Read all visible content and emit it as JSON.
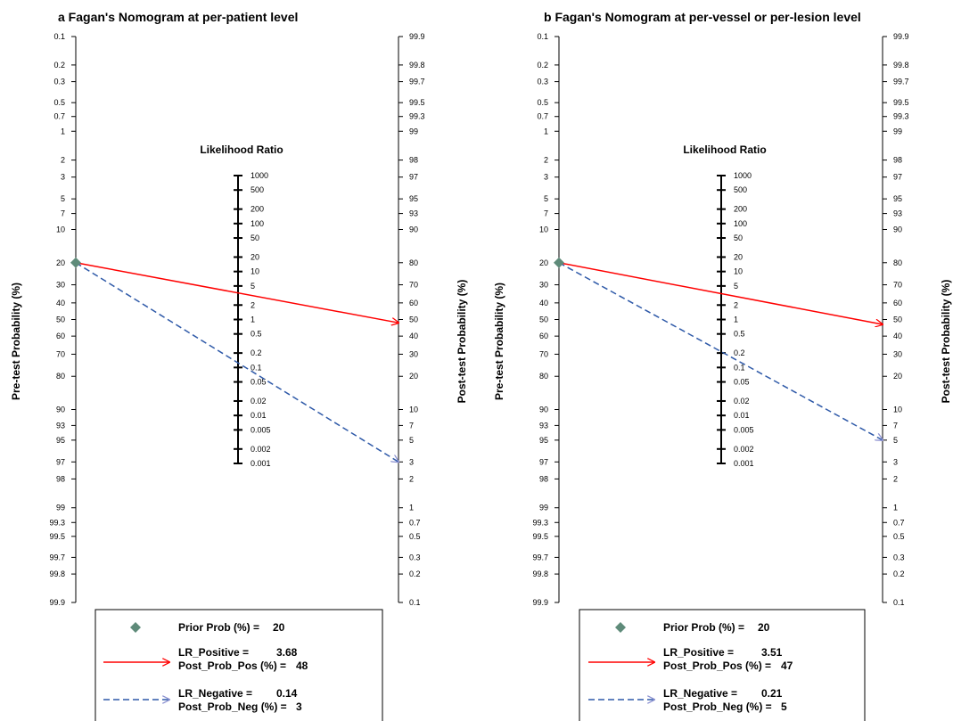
{
  "chart_data": [
    {
      "type": "nomogram",
      "title": "a  Fagan's Nomogram at per-patient level",
      "ylabel_left": "Pre-test Probability (%)",
      "ylabel_right": "Post-test Probability (%)",
      "lr_axis_title": "Likelihood Ratio",
      "pre_ticks": [
        "0.1",
        "0.2",
        "0.3",
        "0.5",
        "0.7",
        "1",
        "2",
        "3",
        "5",
        "7",
        "10",
        "20",
        "30",
        "40",
        "50",
        "60",
        "70",
        "80",
        "90",
        "93",
        "95",
        "97",
        "98",
        "99",
        "99.3",
        "99.5",
        "99.7",
        "99.8",
        "99.9"
      ],
      "lr_ticks": [
        "1000",
        "500",
        "200",
        "100",
        "50",
        "20",
        "10",
        "5",
        "2",
        "1",
        "0.5",
        "0.2",
        "0.1",
        "0.05",
        "0.02",
        "0.01",
        "0.005",
        "0.002",
        "0.001"
      ],
      "post_ticks": [
        "99.9",
        "99.8",
        "99.7",
        "99.5",
        "99.3",
        "99",
        "98",
        "97",
        "95",
        "93",
        "90",
        "80",
        "70",
        "60",
        "50",
        "40",
        "30",
        "20",
        "10",
        "7",
        "5",
        "3",
        "2",
        "1",
        "0.7",
        "0.5",
        "0.3",
        "0.2",
        "0.1"
      ],
      "prior_prob": 20,
      "lr_positive": 3.68,
      "post_prob_pos": 48,
      "lr_negative": 0.14,
      "post_prob_neg": 3,
      "legend": {
        "prior_label": "Prior Prob (%) =",
        "prior_value": "20",
        "lr_pos_label": "LR_Positive =",
        "lr_pos_value": "3.68",
        "post_pos_label": "Post_Prob_Pos (%) =",
        "post_pos_value": "48",
        "lr_neg_label": "LR_Negative =",
        "lr_neg_value": "0.14",
        "post_neg_label": "Post_Prob_Neg (%) =",
        "post_neg_value": "3"
      }
    },
    {
      "type": "nomogram",
      "title": "b  Fagan's Nomogram at per-vessel or per-lesion level",
      "ylabel_left": "Pre-test Probability (%)",
      "ylabel_right": "Post-test Probability (%)",
      "lr_axis_title": "Likelihood Ratio",
      "pre_ticks": [
        "0.1",
        "0.2",
        "0.3",
        "0.5",
        "0.7",
        "1",
        "2",
        "3",
        "5",
        "7",
        "10",
        "20",
        "30",
        "40",
        "50",
        "60",
        "70",
        "80",
        "90",
        "93",
        "95",
        "97",
        "98",
        "99",
        "99.3",
        "99.5",
        "99.7",
        "99.8",
        "99.9"
      ],
      "lr_ticks": [
        "1000",
        "500",
        "200",
        "100",
        "50",
        "20",
        "10",
        "5",
        "2",
        "1",
        "0.5",
        "0.2",
        "0.1",
        "0.05",
        "0.02",
        "0.01",
        "0.005",
        "0.002",
        "0.001"
      ],
      "post_ticks": [
        "99.9",
        "99.8",
        "99.7",
        "99.5",
        "99.3",
        "99",
        "98",
        "97",
        "95",
        "93",
        "90",
        "80",
        "70",
        "60",
        "50",
        "40",
        "30",
        "20",
        "10",
        "7",
        "5",
        "3",
        "2",
        "1",
        "0.7",
        "0.5",
        "0.3",
        "0.2",
        "0.1"
      ],
      "prior_prob": 20,
      "lr_positive": 3.51,
      "post_prob_pos": 47,
      "lr_negative": 0.21,
      "post_prob_neg": 5,
      "legend": {
        "prior_label": "Prior Prob (%) =",
        "prior_value": "20",
        "lr_pos_label": "LR_Positive =",
        "lr_pos_value": "3.51",
        "post_pos_label": "Post_Prob_Pos (%) =",
        "post_pos_value": "47",
        "lr_neg_label": "LR_Negative =",
        "lr_neg_value": "0.21",
        "post_neg_label": "Post_Prob_Neg (%) =",
        "post_neg_value": "5"
      }
    }
  ],
  "colors": {
    "positive_line": "#ff0000",
    "negative_line": "#2e59a8",
    "negative_arrow": "#8a8fd0",
    "prior_marker": "#5f8b7a"
  }
}
